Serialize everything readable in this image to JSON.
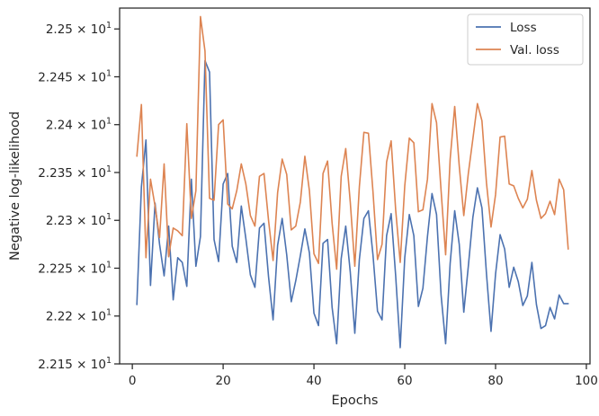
{
  "chart_data": {
    "type": "line",
    "xlabel": "Epochs",
    "ylabel": "Negative log-likelihood",
    "xlim": [
      -2.8,
      100.8
    ],
    "ylim": [
      22.15,
      22.5218
    ],
    "x_ticks": [
      0,
      20,
      40,
      60,
      80,
      100
    ],
    "x_tick_labels": [
      "0",
      "20",
      "40",
      "60",
      "80",
      "100"
    ],
    "y_ticks": [
      22.15,
      22.2,
      22.25,
      22.3,
      22.35,
      22.4,
      22.45,
      22.5
    ],
    "y_tick_labels": [
      {
        "mantissa": "2.215",
        "base": "10",
        "exp": "1"
      },
      {
        "mantissa": "2.22",
        "base": "10",
        "exp": "1"
      },
      {
        "mantissa": "2.225",
        "base": "10",
        "exp": "1"
      },
      {
        "mantissa": "2.23",
        "base": "10",
        "exp": "1"
      },
      {
        "mantissa": "2.235",
        "base": "10",
        "exp": "1"
      },
      {
        "mantissa": "2.24",
        "base": "10",
        "exp": "1"
      },
      {
        "mantissa": "2.245",
        "base": "10",
        "exp": "1"
      },
      {
        "mantissa": "2.25",
        "base": "10",
        "exp": "1"
      }
    ],
    "legend_position": "top-right",
    "grid": false,
    "x": [
      1,
      2,
      3,
      4,
      5,
      6,
      7,
      8,
      9,
      10,
      11,
      12,
      13,
      14,
      15,
      16,
      17,
      18,
      19,
      20,
      21,
      22,
      23,
      24,
      25,
      26,
      27,
      28,
      29,
      30,
      31,
      32,
      33,
      34,
      35,
      36,
      37,
      38,
      39,
      40,
      41,
      42,
      43,
      44,
      45,
      46,
      47,
      48,
      49,
      50,
      51,
      52,
      53,
      54,
      55,
      56,
      57,
      58,
      59,
      60,
      61,
      62,
      63,
      64,
      65,
      66,
      67,
      68,
      69,
      70,
      71,
      72,
      73,
      74,
      75,
      76,
      77,
      78,
      79,
      80,
      81,
      82,
      83,
      84,
      85,
      86,
      87,
      88,
      89,
      90,
      91,
      92,
      93,
      94,
      95,
      96
    ],
    "series": [
      {
        "name": "Loss",
        "color": "#4c72b0",
        "values": [
          22.212,
          22.335,
          22.384,
          22.232,
          22.318,
          22.275,
          22.242,
          22.294,
          22.217,
          22.261,
          22.256,
          22.231,
          22.343,
          22.252,
          22.283,
          22.467,
          22.455,
          22.28,
          22.257,
          22.338,
          22.349,
          22.273,
          22.256,
          22.315,
          22.281,
          22.243,
          22.23,
          22.292,
          22.297,
          22.241,
          22.196,
          22.274,
          22.302,
          22.264,
          22.215,
          22.237,
          22.263,
          22.291,
          22.266,
          22.203,
          22.19,
          22.276,
          22.28,
          22.209,
          22.171,
          22.26,
          22.294,
          22.246,
          22.182,
          22.259,
          22.302,
          22.31,
          22.264,
          22.205,
          22.196,
          22.284,
          22.307,
          22.242,
          22.167,
          22.261,
          22.306,
          22.284,
          22.21,
          22.229,
          22.283,
          22.328,
          22.306,
          22.222,
          22.171,
          22.255,
          22.31,
          22.275,
          22.204,
          22.252,
          22.303,
          22.334,
          22.313,
          22.244,
          22.184,
          22.244,
          22.285,
          22.27,
          22.23,
          22.251,
          22.236,
          22.211,
          22.221,
          22.256,
          22.212,
          22.187,
          22.19,
          22.209,
          22.197,
          22.222,
          22.213,
          22.213
        ]
      },
      {
        "name": "Val. loss",
        "color": "#dd8452",
        "values": [
          22.367,
          22.421,
          22.261,
          22.343,
          22.315,
          22.282,
          22.359,
          22.262,
          22.292,
          22.289,
          22.284,
          22.401,
          22.302,
          22.331,
          22.513,
          22.477,
          22.323,
          22.321,
          22.4,
          22.405,
          22.317,
          22.312,
          22.331,
          22.359,
          22.338,
          22.305,
          22.294,
          22.346,
          22.349,
          22.3,
          22.258,
          22.329,
          22.364,
          22.348,
          22.29,
          22.294,
          22.319,
          22.367,
          22.331,
          22.265,
          22.255,
          22.349,
          22.362,
          22.297,
          22.249,
          22.346,
          22.375,
          22.319,
          22.252,
          22.335,
          22.392,
          22.391,
          22.33,
          22.259,
          22.275,
          22.361,
          22.383,
          22.311,
          22.256,
          22.336,
          22.386,
          22.381,
          22.309,
          22.311,
          22.343,
          22.422,
          22.402,
          22.331,
          22.264,
          22.364,
          22.419,
          22.357,
          22.305,
          22.349,
          22.385,
          22.422,
          22.404,
          22.339,
          22.293,
          22.327,
          22.387,
          22.388,
          22.338,
          22.336,
          22.323,
          22.313,
          22.322,
          22.352,
          22.321,
          22.302,
          22.307,
          22.32,
          22.306,
          22.343,
          22.332,
          22.27
        ]
      }
    ]
  }
}
